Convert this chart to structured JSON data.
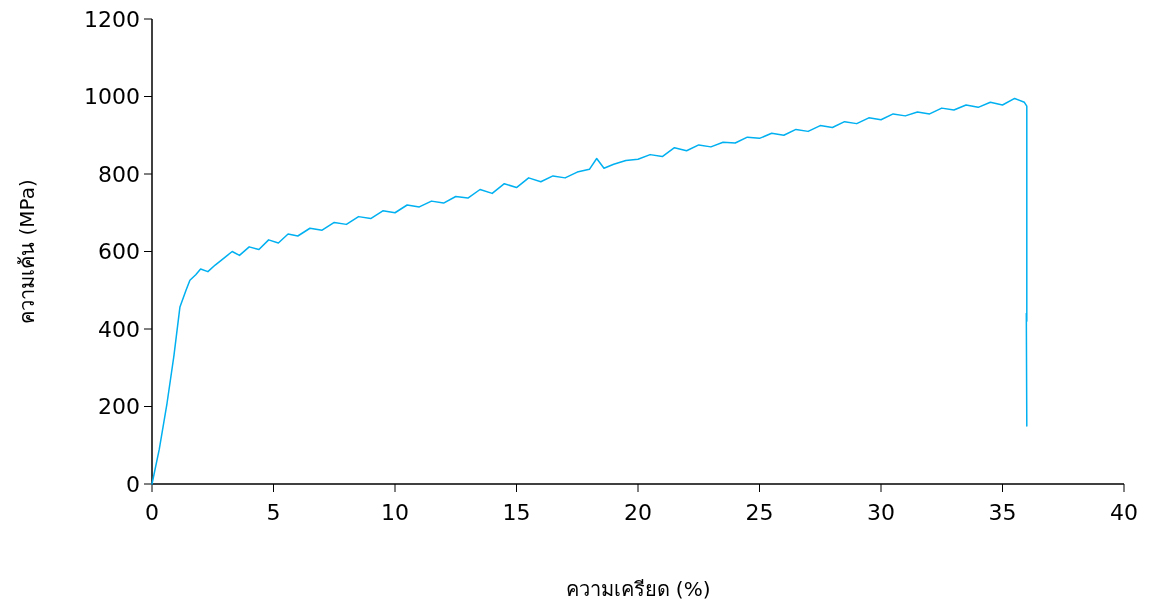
{
  "chart_data": {
    "type": "line",
    "xlabel": "ความเครียด (%)",
    "ylabel": "ความเค้น (MPa)",
    "xlim": [
      0,
      40
    ],
    "xticks": [
      0,
      5,
      10,
      15,
      20,
      25,
      30,
      35,
      40
    ],
    "ylim": [
      0,
      1200
    ],
    "yticks": [
      0,
      200,
      400,
      600,
      800,
      1000,
      1200
    ],
    "marker": "none",
    "line_style": "solid",
    "series": [
      {
        "color": "#00b0f0",
        "x": [
          0,
          0.3,
          0.62,
          0.9,
          1.15,
          1.4,
          1.56,
          1.8,
          2.0,
          2.3,
          2.6,
          3.0,
          3.3,
          3.6,
          4.0,
          4.4,
          4.8,
          5.2,
          5.6,
          6.0,
          6.5,
          7.0,
          7.5,
          8.0,
          8.5,
          9.0,
          9.5,
          10.0,
          10.5,
          11.0,
          11.5,
          12.0,
          12.5,
          13.0,
          13.5,
          14.0,
          14.5,
          15.0,
          15.5,
          16.0,
          16.5,
          17.0,
          17.5,
          18.0,
          18.3,
          18.6,
          19.0,
          19.5,
          20.0,
          20.5,
          21.0,
          21.5,
          22.0,
          22.5,
          23.0,
          23.5,
          24.0,
          24.5,
          25.0,
          25.5,
          26.0,
          26.5,
          27.0,
          27.5,
          28.0,
          28.5,
          29.0,
          29.5,
          30.0,
          30.5,
          31.0,
          31.5,
          32.0,
          32.5,
          33.0,
          33.5,
          34.0,
          34.5,
          35.0,
          35.5,
          35.9,
          36.0,
          36.0,
          35.98,
          36.0
        ],
        "values": [
          0,
          90,
          209,
          330,
          457,
          500,
          526,
          540,
          555,
          548,
          565,
          585,
          600,
          590,
          612,
          605,
          630,
          622,
          645,
          640,
          660,
          655,
          675,
          670,
          690,
          685,
          705,
          700,
          720,
          715,
          730,
          725,
          742,
          738,
          760,
          750,
          775,
          765,
          790,
          780,
          795,
          790,
          805,
          812,
          840,
          815,
          825,
          835,
          838,
          850,
          845,
          868,
          860,
          875,
          870,
          882,
          880,
          895,
          892,
          905,
          900,
          915,
          910,
          925,
          920,
          935,
          930,
          945,
          940,
          955,
          950,
          960,
          955,
          970,
          965,
          978,
          972,
          985,
          978,
          995,
          985,
          975,
          420,
          440,
          150
        ]
      }
    ]
  }
}
